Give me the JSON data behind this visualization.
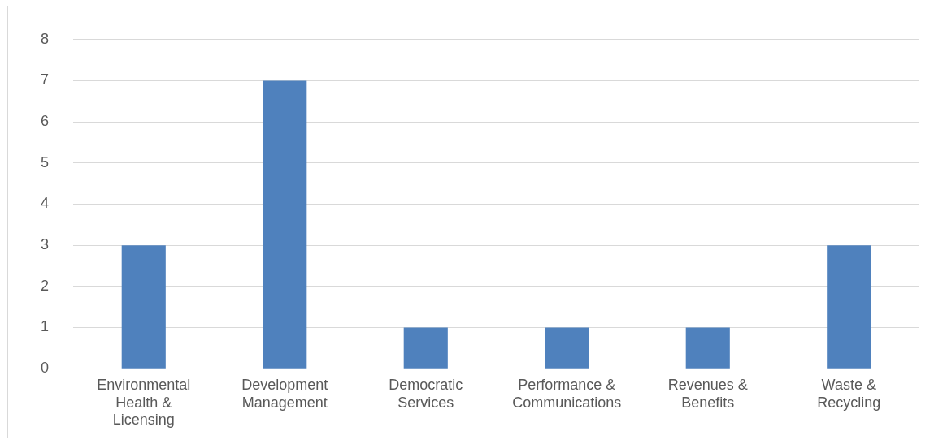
{
  "chart_data": {
    "type": "bar",
    "categories": [
      "Environmental Health & Licensing",
      "Development Management",
      "Democratic Services",
      "Performance & Communications",
      "Revenues & Benefits",
      "Waste & Recycling"
    ],
    "values": [
      3,
      7,
      1,
      1,
      1,
      3
    ],
    "color": "#4f81bd",
    "ylim": [
      0,
      8
    ],
    "yticks": [
      0,
      1,
      2,
      3,
      4,
      5,
      6,
      7,
      8
    ],
    "grid": "y",
    "legend": false
  }
}
